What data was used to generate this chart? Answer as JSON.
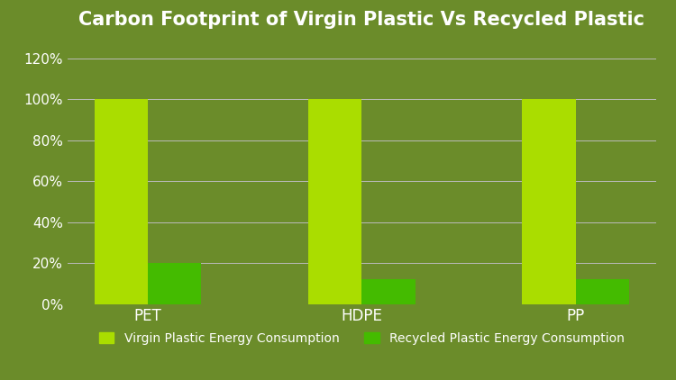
{
  "title": "Carbon Footprint of Virgin Plastic Vs Recycled Plastic",
  "categories": [
    "PET",
    "HDPE",
    "PP"
  ],
  "virgin_values": [
    100,
    100,
    100
  ],
  "recycled_values": [
    20,
    12,
    12
  ],
  "virgin_color": "#aadd00",
  "recycled_color": "#44bb00",
  "background_color": "#6b8c2a",
  "text_color": "white",
  "grid_color": "#bbbbbb",
  "ylim": [
    0,
    130
  ],
  "yticks": [
    0,
    20,
    40,
    60,
    80,
    100,
    120
  ],
  "ytick_labels": [
    "0%",
    "20%",
    "40%",
    "60%",
    "80%",
    "100%",
    "120%"
  ],
  "bar_width": 0.25,
  "title_fontsize": 15,
  "tick_fontsize": 11,
  "xtick_fontsize": 12,
  "legend_labels": [
    "Virgin Plastic Energy Consumption",
    "Recycled Plastic Energy Consumption"
  ],
  "legend_colors": [
    "#aadd00",
    "#44bb00"
  ],
  "legend_fontsize": 10
}
